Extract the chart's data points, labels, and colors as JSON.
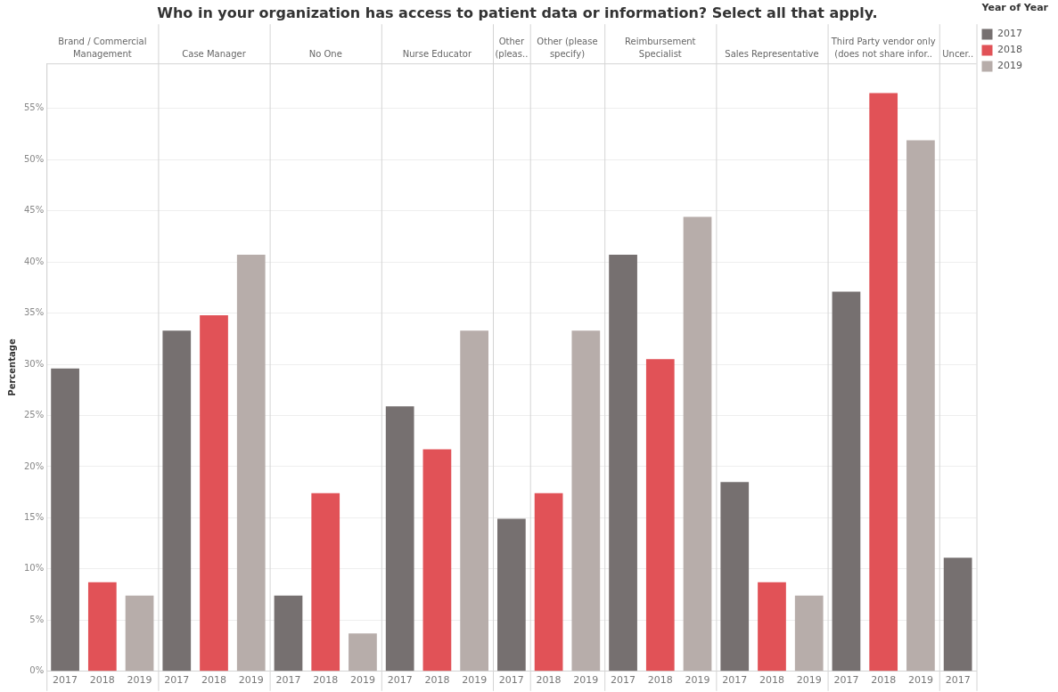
{
  "chart_data": {
    "type": "bar",
    "title": "Who in your organization has access to patient data or information? Select all that apply.",
    "ylabel": "Percentage",
    "legend_title": "Year of Year",
    "categories": [
      "Brand / Commercial Management",
      "Case Manager",
      "No One",
      "Nurse Educator",
      "Other (pleas..",
      "Other (please specify)",
      "Reimbursement Specialist",
      "Sales Representative",
      "Third Party vendor only (does not share infor..",
      "Uncer.."
    ],
    "series": [
      {
        "name": "2017",
        "color": "#767070",
        "values": [
          29.6,
          33.3,
          7.4,
          25.9,
          14.9,
          null,
          40.7,
          18.5,
          37.1,
          11.1
        ]
      },
      {
        "name": "2018",
        "color": "#e15257",
        "values": [
          8.7,
          34.8,
          17.4,
          21.7,
          null,
          17.4,
          30.5,
          8.7,
          56.5,
          null
        ]
      },
      {
        "name": "2019",
        "color": "#b7adaa",
        "values": [
          7.4,
          40.7,
          3.7,
          33.3,
          null,
          33.3,
          44.4,
          7.4,
          51.9,
          null
        ]
      }
    ],
    "ylim": [
      0,
      59.4
    ],
    "yticks": [
      {
        "value": 0,
        "label": "0%"
      },
      {
        "value": 5,
        "label": "5%"
      },
      {
        "value": 10,
        "label": "10%"
      },
      {
        "value": 15,
        "label": "15%"
      },
      {
        "value": 20,
        "label": "20%"
      },
      {
        "value": 25,
        "label": "25%"
      },
      {
        "value": 30,
        "label": "30%"
      },
      {
        "value": 35,
        "label": "35%"
      },
      {
        "value": 40,
        "label": "40%"
      },
      {
        "value": 45,
        "label": "45%"
      },
      {
        "value": 50,
        "label": "50%"
      },
      {
        "value": 55,
        "label": "55%"
      }
    ],
    "grid": "y",
    "legend": "right"
  }
}
